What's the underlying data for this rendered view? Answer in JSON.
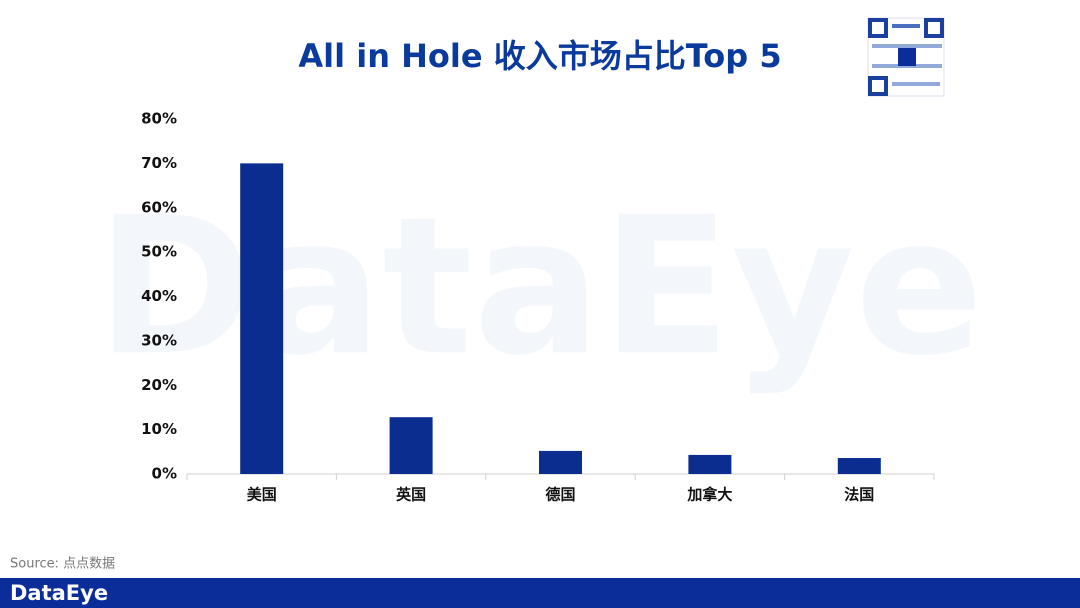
{
  "chart_data": {
    "type": "bar",
    "title": "All in Hole 收入市场占比Top 5",
    "categories": [
      "美国",
      "英国",
      "德国",
      "加拿大",
      "法国"
    ],
    "values": [
      70,
      12.8,
      5.2,
      4.3,
      3.6
    ],
    "color": "#0a2d8f",
    "ylim": [
      0,
      80
    ],
    "yticks": [
      {
        "value": 0,
        "label": "0%"
      },
      {
        "value": 10,
        "label": "10%"
      },
      {
        "value": 20,
        "label": "20%"
      },
      {
        "value": 30,
        "label": "30%"
      },
      {
        "value": 40,
        "label": "40%"
      },
      {
        "value": 50,
        "label": "50%"
      },
      {
        "value": 60,
        "label": "60%"
      },
      {
        "value": 70,
        "label": "70%"
      },
      {
        "value": 80,
        "label": "80%"
      }
    ],
    "grid": false
  },
  "source": "Source: 点点数据",
  "watermark": "DataEye",
  "footer": {
    "brand": "DataEye"
  }
}
